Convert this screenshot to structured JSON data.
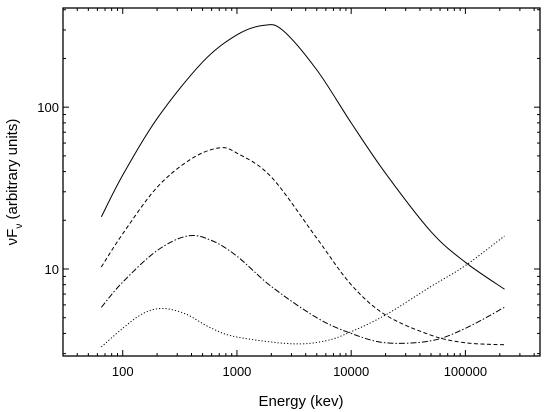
{
  "chart_data": {
    "type": "line",
    "title": "",
    "xlabel": "Energy (kev)",
    "ylabel": {
      "prefix": "νF",
      "subscript": "ν",
      "suffix": " (arbitrary units)"
    },
    "xscale": "log",
    "yscale": "log",
    "xlim": [
      30,
      450000
    ],
    "ylim": [
      2.9,
      410
    ],
    "grid": false,
    "legend": "none",
    "x_ticks": [
      {
        "value": 100,
        "label": "100"
      },
      {
        "value": 1000,
        "label": "1000"
      },
      {
        "value": 10000,
        "label": "10000"
      },
      {
        "value": 100000,
        "label": "100000"
      }
    ],
    "y_ticks": [
      {
        "value": 10,
        "label": "10"
      },
      {
        "value": 100,
        "label": "100"
      }
    ],
    "series": [
      {
        "style": "solid",
        "points": [
          [
            65,
            21
          ],
          [
            100,
            38
          ],
          [
            200,
            85
          ],
          [
            500,
            190
          ],
          [
            1000,
            280
          ],
          [
            1700,
            320
          ],
          [
            2500,
            300
          ],
          [
            5000,
            170
          ],
          [
            10000,
            80
          ],
          [
            20000,
            39
          ],
          [
            50000,
            17
          ],
          [
            100000,
            11
          ],
          [
            220000,
            7.5
          ]
        ]
      },
      {
        "style": "dashed",
        "points": [
          [
            65,
            10.3
          ],
          [
            100,
            16.5
          ],
          [
            200,
            32
          ],
          [
            400,
            48
          ],
          [
            700,
            56
          ],
          [
            1000,
            52
          ],
          [
            2000,
            37
          ],
          [
            5000,
            15.5
          ],
          [
            10000,
            8
          ],
          [
            20000,
            5.2
          ],
          [
            50000,
            3.9
          ],
          [
            100000,
            3.5
          ],
          [
            220000,
            3.4
          ]
        ]
      },
      {
        "style": "dash-dot",
        "points": [
          [
            65,
            5.8
          ],
          [
            100,
            8.3
          ],
          [
            200,
            13
          ],
          [
            370,
            16
          ],
          [
            600,
            15
          ],
          [
            1000,
            12
          ],
          [
            2000,
            7.8
          ],
          [
            5000,
            5
          ],
          [
            10000,
            4
          ],
          [
            20000,
            3.5
          ],
          [
            50000,
            3.6
          ],
          [
            100000,
            4.3
          ],
          [
            220000,
            5.8
          ]
        ]
      },
      {
        "style": "dotted",
        "points": [
          [
            65,
            3.3
          ],
          [
            100,
            4.3
          ],
          [
            150,
            5.3
          ],
          [
            220,
            5.7
          ],
          [
            350,
            5.3
          ],
          [
            600,
            4.3
          ],
          [
            1000,
            3.8
          ],
          [
            3000,
            3.45
          ],
          [
            6000,
            3.6
          ],
          [
            10000,
            4.1
          ],
          [
            20000,
            5.2
          ],
          [
            50000,
            7.8
          ],
          [
            100000,
            10.5
          ],
          [
            220000,
            16
          ]
        ]
      }
    ]
  }
}
